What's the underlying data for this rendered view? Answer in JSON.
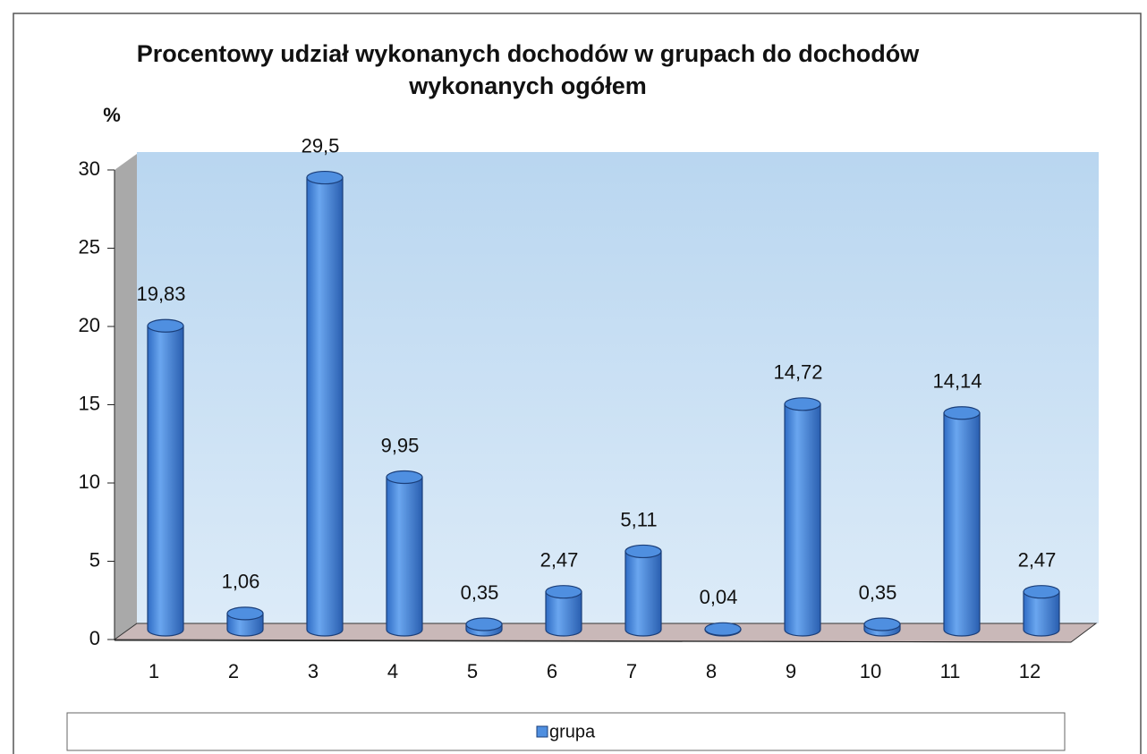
{
  "chart_data": {
    "type": "bar3d",
    "title": "Procentowy udział wykonanych dochodów w grupach do dochodów wykonanych ogółem",
    "y_label": "%",
    "categories": [
      "1",
      "2",
      "3",
      "4",
      "5",
      "6",
      "7",
      "8",
      "9",
      "10",
      "11",
      "12"
    ],
    "series": [
      {
        "name": "grupa",
        "color": "#4f8fe0",
        "values": [
          19.83,
          1.06,
          29.5,
          9.95,
          0.35,
          2.47,
          5.11,
          0.04,
          14.72,
          0.35,
          14.14,
          2.47
        ],
        "value_labels": [
          "19,83",
          "1,06",
          "29,5",
          "9,95",
          "0,35",
          "2,47",
          "5,11",
          "0,04",
          "14,72",
          "0,35",
          "14,14",
          "2,47"
        ]
      }
    ],
    "ylim": [
      0,
      30
    ],
    "yticks": [
      0,
      5,
      10,
      15,
      20,
      25,
      30
    ],
    "legend": "bottom"
  }
}
